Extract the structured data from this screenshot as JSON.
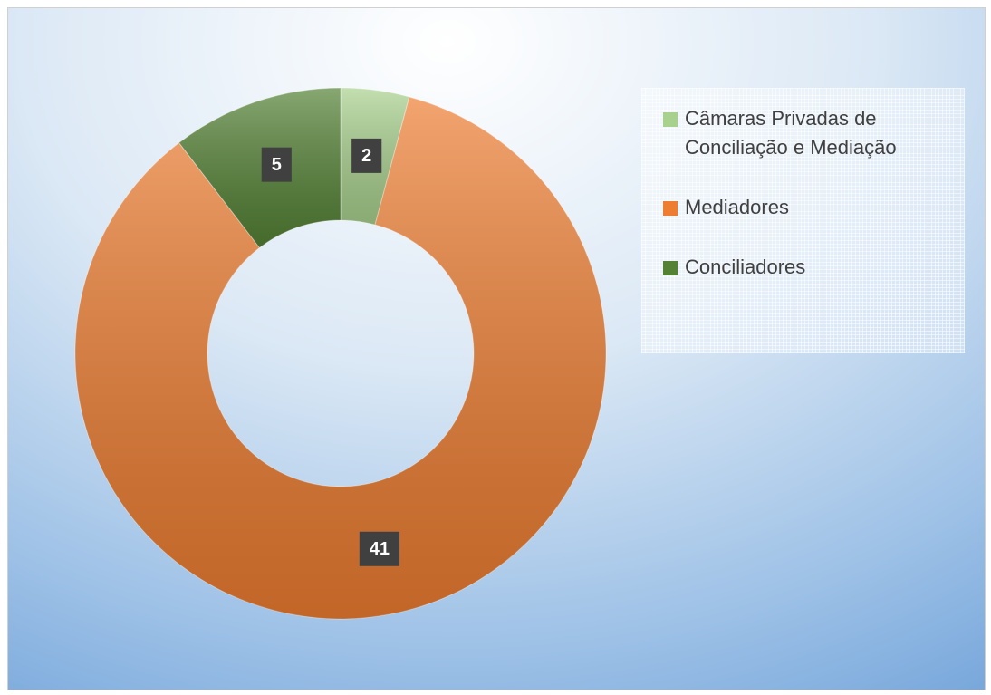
{
  "chart_data": {
    "type": "donut",
    "categories": [
      "Câmaras Privadas de Conciliação e Mediação",
      "Mediadores",
      "Conciliadores"
    ],
    "values": [
      2,
      41,
      5
    ],
    "colors": [
      "#a9d18e",
      "#ed7d31",
      "#548235"
    ],
    "legend": "right"
  }
}
